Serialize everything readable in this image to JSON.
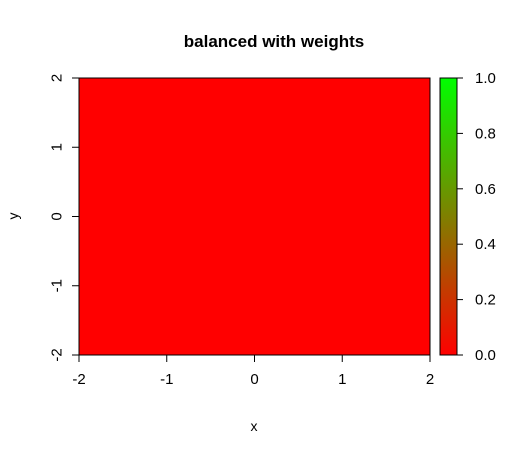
{
  "chart_data": {
    "type": "heatmap",
    "title": "balanced with weights",
    "xlabel": "x",
    "ylabel": "y",
    "xlim": [
      -2,
      2
    ],
    "ylim": [
      -2,
      2
    ],
    "x_ticks": [
      "-2",
      "-1",
      "0",
      "1",
      "2"
    ],
    "y_ticks": [
      "-2",
      "-1",
      "0",
      "1",
      "2"
    ],
    "fill_value": 0.0,
    "grid": false,
    "legend_position": "right",
    "colorbar": {
      "range": [
        0.0,
        1.0
      ],
      "ticks": [
        "0.0",
        "0.2",
        "0.4",
        "0.6",
        "0.8",
        "1.0"
      ],
      "low_color": "#ff0000",
      "high_color": "#00ff00"
    }
  }
}
